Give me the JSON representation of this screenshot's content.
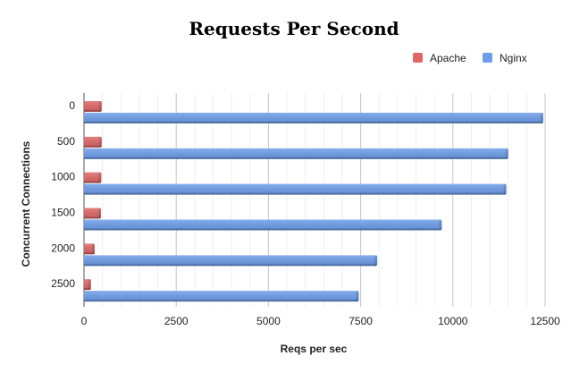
{
  "chart_data": {
    "type": "bar",
    "orientation": "horizontal",
    "title": "Requests Per Second",
    "xlabel": "Reqs per sec",
    "ylabel": "Concurrent Connections",
    "categories": [
      "0",
      "500",
      "1000",
      "1500",
      "2000",
      "2500"
    ],
    "xlim": [
      0,
      12500
    ],
    "xticks": [
      "0",
      "2500",
      "5000",
      "7500",
      "10000",
      "12500"
    ],
    "grid": true,
    "legend_position": "top-right",
    "series": [
      {
        "name": "Apache",
        "color": "#e06666",
        "values": [
          480,
          480,
          470,
          460,
          290,
          190
        ]
      },
      {
        "name": "Nginx",
        "color": "#6d9eeb",
        "values": [
          12450,
          11500,
          11450,
          9700,
          7950,
          7450
        ]
      }
    ]
  }
}
